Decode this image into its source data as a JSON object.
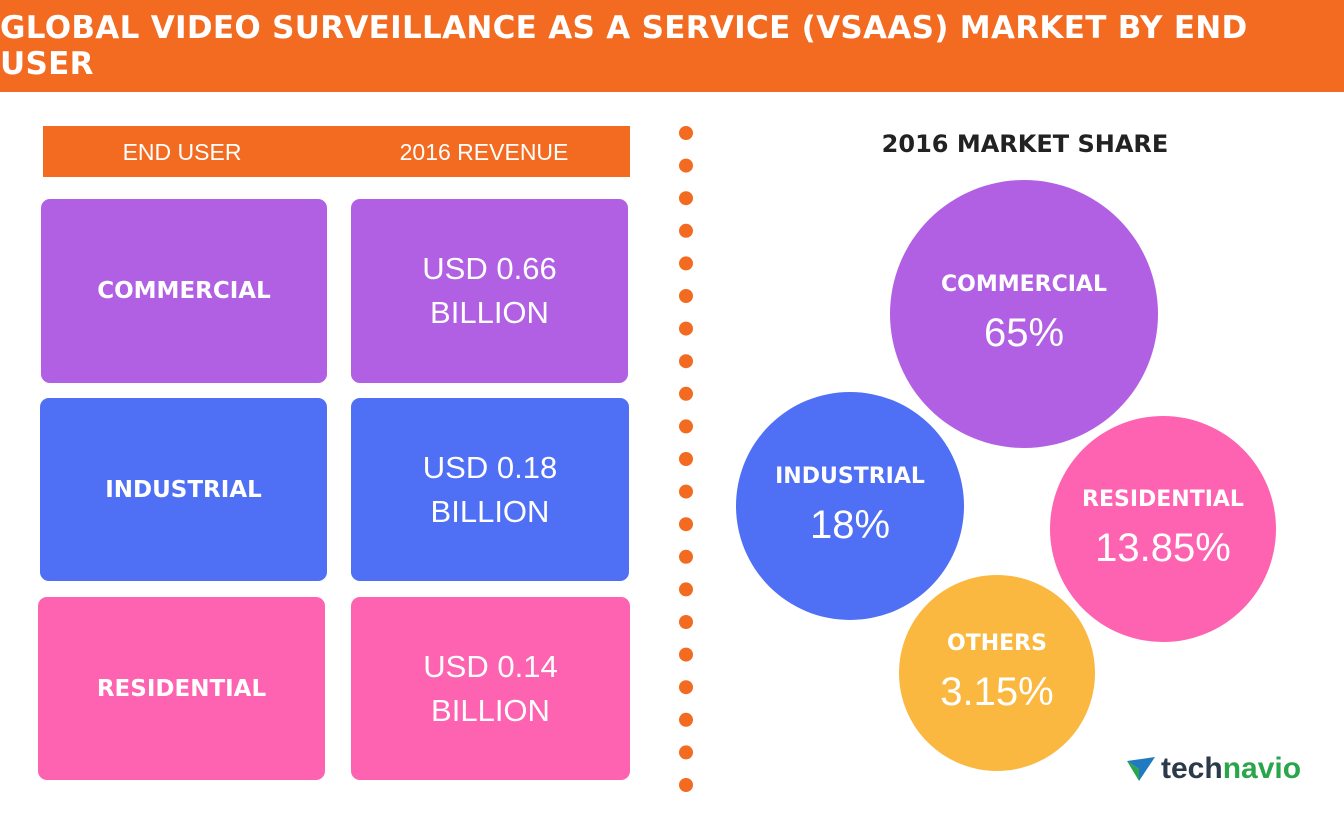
{
  "header": {
    "title": "GLOBAL VIDEO SURVEILLANCE AS A SERVICE (VSAAS) MARKET BY END USER"
  },
  "table": {
    "headers": [
      "END USER",
      "2016 REVENUE"
    ],
    "rows": [
      [
        "COMMERCIAL",
        "USD 0.66 BILLION"
      ],
      [
        "INDUSTRIAL",
        "USD 0.18 BILLION"
      ],
      [
        "RESIDENTIAL",
        "USD 0.14 BILLION"
      ]
    ]
  },
  "market_share": {
    "title": "2016 MARKET SHARE",
    "bubbles": [
      {
        "label": "COMMERCIAL",
        "value": "65%"
      },
      {
        "label": "INDUSTRIAL",
        "value": "18%"
      },
      {
        "label": "RESIDENTIAL",
        "value": "13.85%"
      },
      {
        "label": "OTHERS",
        "value": "3.15%"
      }
    ]
  },
  "logo": {
    "parts": [
      "tech",
      "navio"
    ]
  }
}
